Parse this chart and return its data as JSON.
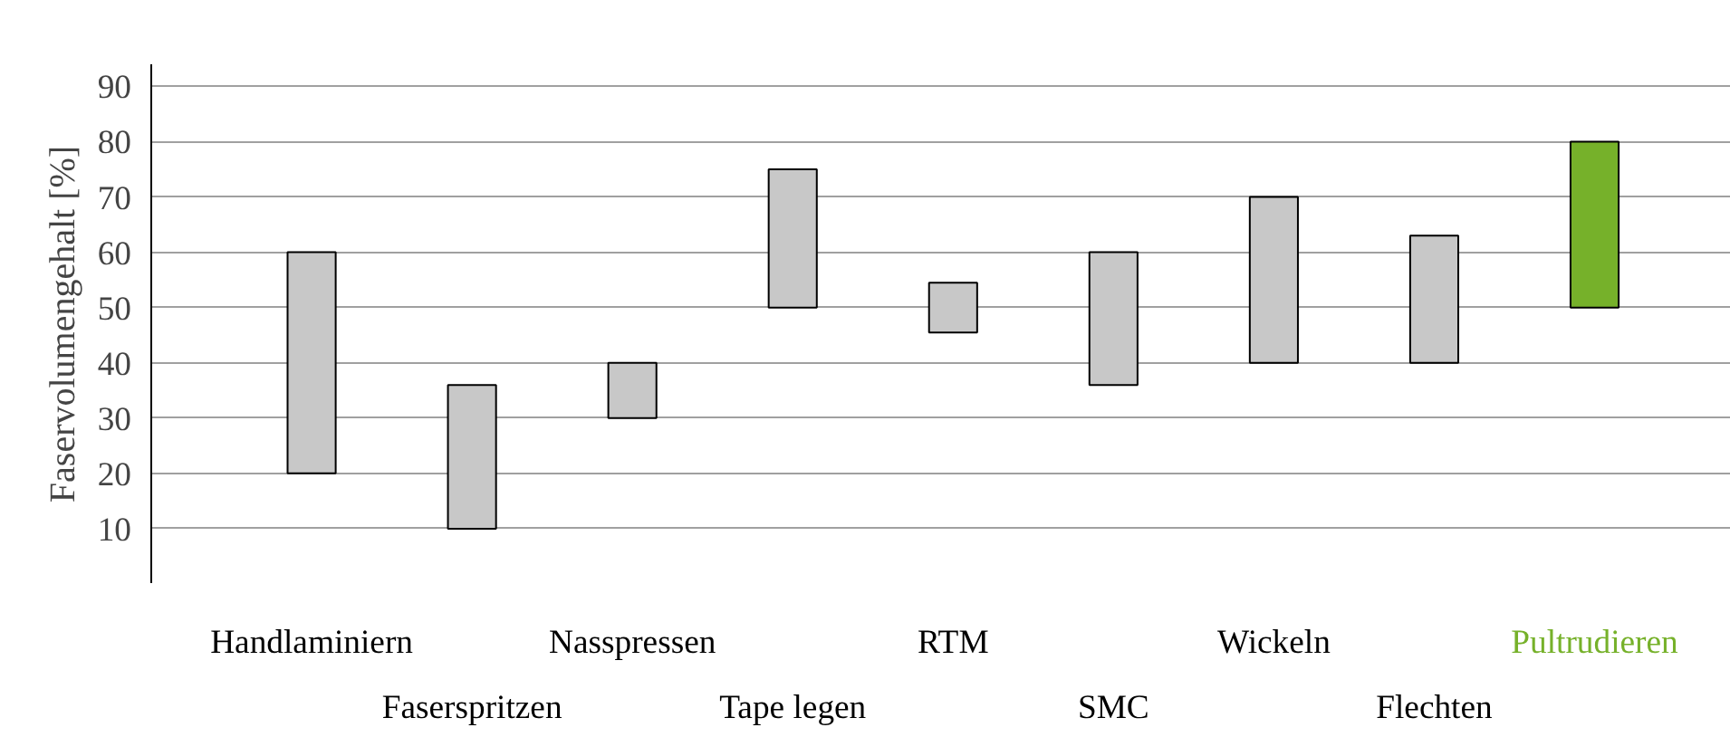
{
  "chart_data": {
    "type": "bar",
    "ylabel": "Faservolumengehalt [%]",
    "categories": [
      "Handlaminiern",
      "Faserspritzen",
      "Nasspressen",
      "Tape legen",
      "RTM",
      "SMC",
      "Wickeln",
      "Flechten",
      "Pultrudieren"
    ],
    "base": [
      20,
      10,
      30,
      50,
      45.5,
      36,
      40,
      40,
      50
    ],
    "values": [
      40,
      26,
      10,
      25,
      9,
      24,
      30,
      23,
      30
    ],
    "colors": [
      "#c8c8c8",
      "#c8c8c8",
      "#c8c8c8",
      "#c8c8c8",
      "#c8c8c8",
      "#c8c8c8",
      "#c8c8c8",
      "#c8c8c8",
      "#76b12a"
    ],
    "ylim": [
      0,
      94
    ],
    "yticks": [
      10,
      20,
      30,
      40,
      50,
      60,
      70,
      80,
      90
    ],
    "grid": "y"
  }
}
